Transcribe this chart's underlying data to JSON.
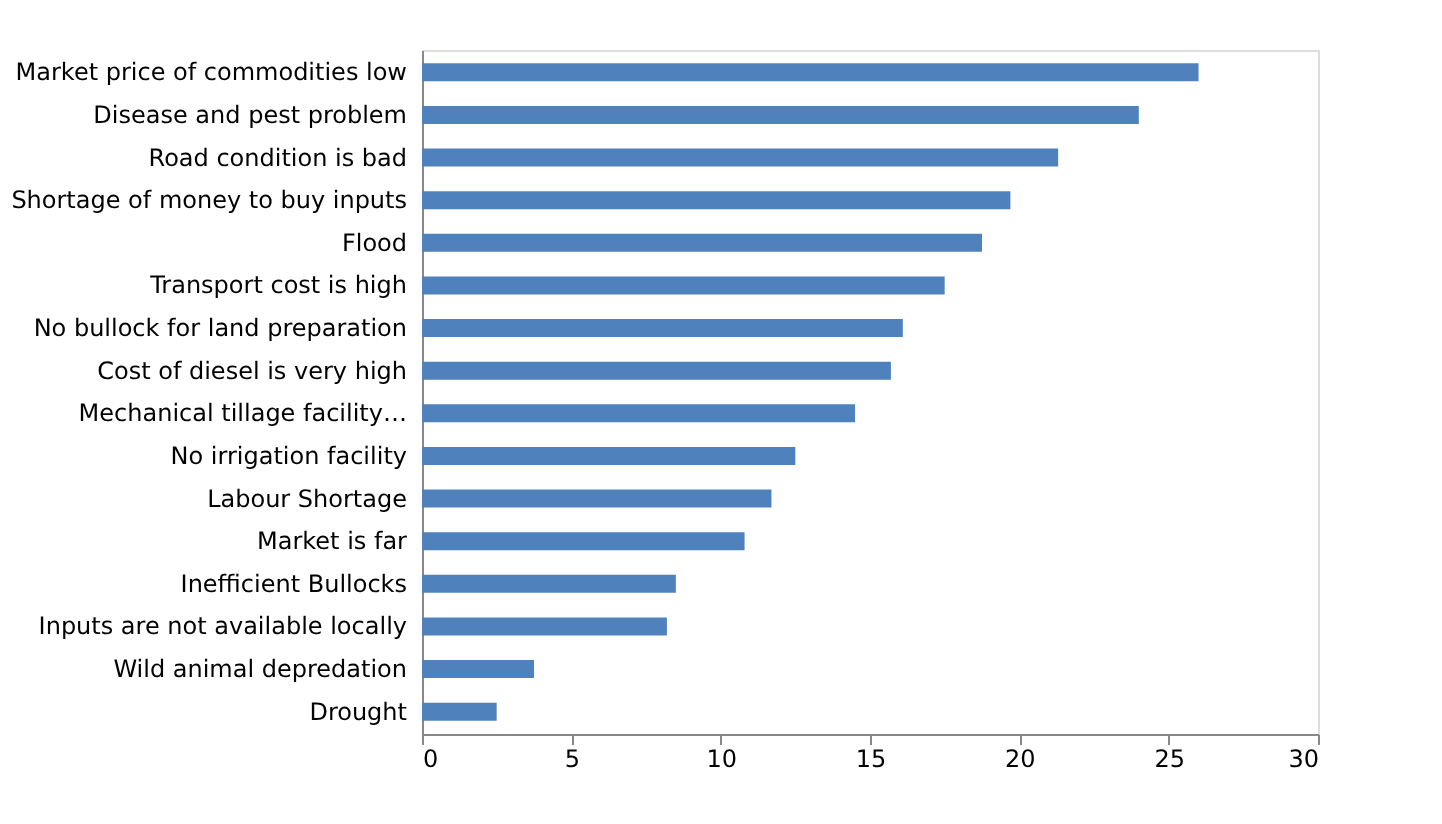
{
  "chart_data": {
    "type": "bar",
    "orientation": "horizontal",
    "categories": [
      "Market price of commodities low",
      "Disease and pest problem",
      "Road condition is bad",
      "Shortage of money to buy inputs",
      "Flood",
      "Transport cost is high",
      "No bullock for land preparation",
      "Cost of diesel is very high",
      "Mechanical tillage facility…",
      "No irrigation facility",
      "Labour Shortage",
      "Market is far",
      "Inefficient Bullocks",
      "Inputs are not available locally",
      "Wild animal depredation",
      "Drought"
    ],
    "values": [
      26,
      24,
      21.3,
      19.7,
      18.75,
      17.5,
      16.1,
      15.7,
      14.5,
      12.5,
      11.7,
      10.8,
      8.5,
      8.2,
      3.75,
      2.5
    ],
    "color": "#4f81bd",
    "xlim": [
      0,
      30
    ],
    "xticks": [
      0,
      5,
      10,
      15,
      20,
      25,
      30
    ],
    "grid": false
  }
}
